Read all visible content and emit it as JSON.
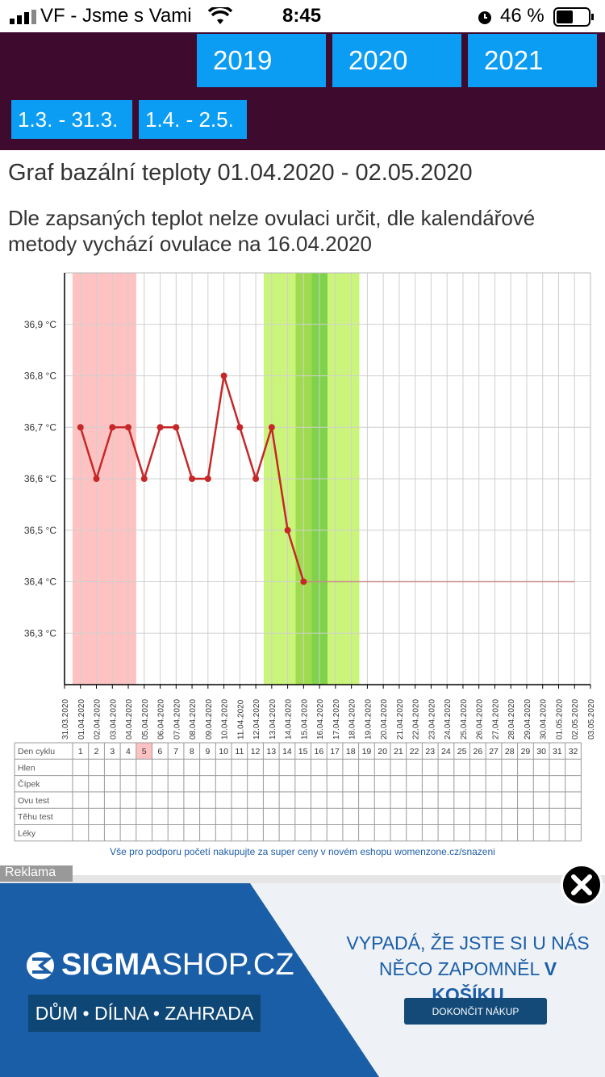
{
  "status_bar": {
    "carrier": "VF - Jsme s Vami",
    "time": "8:45",
    "battery": "46 %"
  },
  "nav": {
    "years": [
      "2019",
      "2020",
      "2021"
    ],
    "ranges": [
      "1.3. - 31.3.",
      "1.4. - 2.5."
    ]
  },
  "page": {
    "title": "Graf bazální teploty 01.04.2020 - 02.05.2020",
    "ovulation_note": "Dle zapsaných teplot nelze ovulaci určit, dle kalendářové metody vychází ovulace na 16.04.2020"
  },
  "chart_data": {
    "type": "line",
    "ylim": [
      36.2,
      37.0
    ],
    "yticks": [
      "36,3 °C",
      "36,4 °C",
      "36,5 °C",
      "36,6 °C",
      "36,7 °C",
      "36,8 °C",
      "36,9 °C"
    ],
    "x": [
      "31.03.2020",
      "01.04.2020",
      "02.04.2020",
      "03.04.2020",
      "04.04.2020",
      "05.04.2020",
      "06.04.2020",
      "07.04.2020",
      "08.04.2020",
      "09.04.2020",
      "10.04.2020",
      "11.04.2020",
      "12.04.2020",
      "13.04.2020",
      "14.04.2020",
      "15.04.2020",
      "16.04.2020",
      "17.04.2020",
      "18.04.2020",
      "19.04.2020",
      "20.04.2020",
      "21.04.2020",
      "22.04.2020",
      "23.04.2020",
      "24.04.2020",
      "25.04.2020",
      "26.04.2020",
      "27.04.2020",
      "28.04.2020",
      "29.04.2020",
      "30.04.2020",
      "01.05.2020",
      "02.05.2020",
      "03.05.2020"
    ],
    "series": [
      {
        "values": [
          null,
          36.7,
          36.6,
          36.7,
          36.7,
          36.6,
          36.7,
          36.7,
          36.6,
          36.6,
          36.8,
          36.7,
          36.6,
          36.7,
          36.5,
          36.4,
          null,
          null,
          null,
          null,
          null,
          null,
          null,
          null,
          null,
          null,
          null,
          null,
          null,
          null,
          null,
          null,
          null,
          null
        ]
      }
    ],
    "baseline_value": 36.4,
    "bands": [
      {
        "from": "01.04.2020",
        "to": "04.04.2020",
        "kind": "menstruation",
        "color": "#ffc2c2"
      },
      {
        "from": "13.04.2020",
        "to": "18.04.2020",
        "kind": "fertile",
        "color": "#cbf57a"
      },
      {
        "from": "15.04.2020",
        "to": "15.04.2020",
        "kind": "fertile-peak",
        "color": "#9fdb4f"
      },
      {
        "from": "16.04.2020",
        "to": "16.04.2020",
        "kind": "ovulation",
        "color": "#7fd34a"
      }
    ],
    "line_color": "#c62828",
    "grid": true
  },
  "cycle_table": {
    "row_labels": [
      "Den cyklu",
      "Hlen",
      "Čípek",
      "Ovu test",
      "Těhu test",
      "Léky"
    ],
    "days": [
      "1",
      "2",
      "3",
      "4",
      "5",
      "6",
      "7",
      "8",
      "9",
      "10",
      "11",
      "12",
      "13",
      "14",
      "15",
      "16",
      "17",
      "18",
      "19",
      "20",
      "21",
      "22",
      "23",
      "24",
      "25",
      "26",
      "27",
      "28",
      "29",
      "30",
      "31",
      "32"
    ],
    "highlight_day_index": 4,
    "highlight_color": "#ffc2c2"
  },
  "shop_link": "Vše pro podporu početí nakupujte za super ceny v novém eshopu womenzone.cz/snazeni",
  "ad": {
    "label": "Reklama",
    "logo_bold": "SIGMA",
    "logo_light": "SHOP.CZ",
    "slogan": "DŮM • DÍLNA • ZAHRADA",
    "headline_line1": "VYPADÁ, ŽE JSTE SI U NÁS",
    "headline_line2_a": "NĚCO ZAPOMNĚL ",
    "headline_line2_b": "V KOŠÍKU",
    "cta": "DOKONČIT NÁKUP",
    "brand_color": "#1a5ea8"
  }
}
